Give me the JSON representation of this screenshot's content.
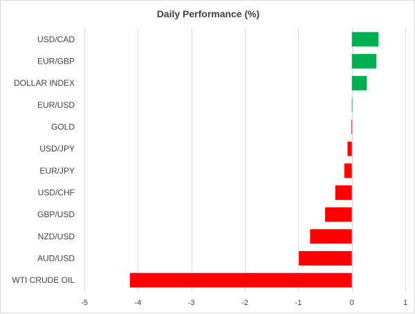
{
  "chart_data": {
    "type": "bar",
    "orientation": "horizontal",
    "title": "Daily Performance (%)",
    "xlabel": "",
    "ylabel": "",
    "categories": [
      "USD/CAD",
      "EUR/GBP",
      "DOLLAR INDEX",
      "EUR/USD",
      "GOLD",
      "USD/JPY",
      "EUR/JPY",
      "USD/CHF",
      "GBP/USD",
      "NZD/USD",
      "AUD/USD",
      "WTI CRUDE OIL"
    ],
    "values": [
      0.5,
      0.46,
      0.28,
      0.01,
      -0.01,
      -0.08,
      -0.14,
      -0.31,
      -0.5,
      -0.78,
      -0.99,
      -4.15
    ],
    "xlim": [
      -5,
      1
    ],
    "xticks": [
      -5,
      -4,
      -3,
      -2,
      -1,
      0,
      1
    ],
    "grid": "vertical",
    "legend": "none",
    "colors": {
      "positive": "#00b050",
      "negative": "#ff0000",
      "grid": "#d9d9d9",
      "text": "#404040"
    }
  }
}
